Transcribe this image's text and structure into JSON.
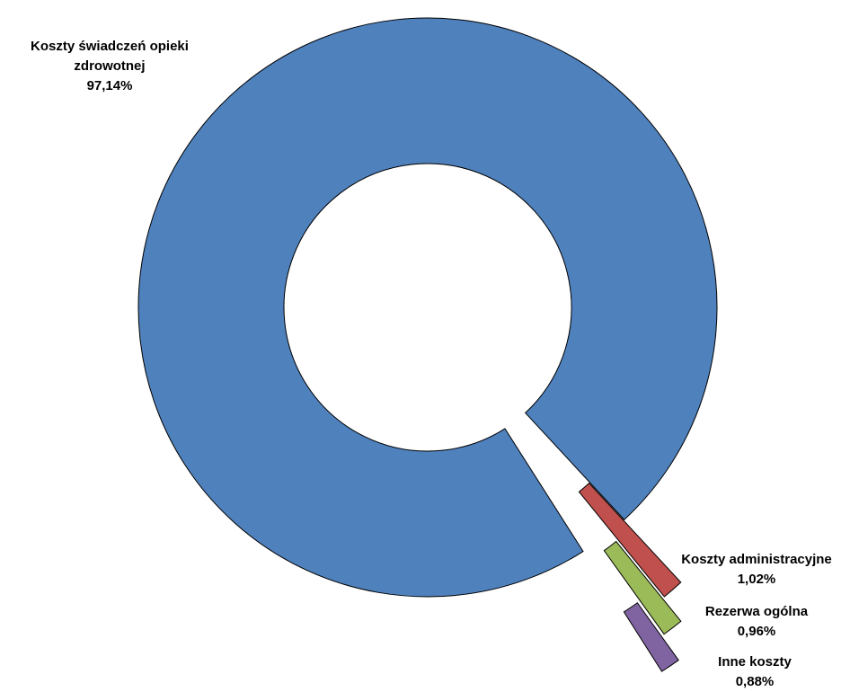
{
  "chart_data": {
    "type": "pie",
    "variant": "doughnut-exploded",
    "series": [
      {
        "name": "Koszty świadczeń opieki zdrowotnej",
        "value": 97.14,
        "value_label": "97,14%",
        "color": "#4f81bd"
      },
      {
        "name": "Koszty administracyjne",
        "value": 1.02,
        "value_label": "1,02%",
        "color": "#c0504d"
      },
      {
        "name": "Rezerwa ogólna",
        "value": 0.96,
        "value_label": "0,96%",
        "color": "#9bbb59"
      },
      {
        "name": "Inne koszty",
        "value": 0.88,
        "value_label": "0,88%",
        "color": "#8064a2"
      }
    ],
    "labels": {
      "main": [
        "Koszty świadczeń opieki",
        "zdrowotnej",
        "97,14%"
      ],
      "admin": [
        "Koszty administracyjne",
        "1,02%"
      ],
      "reserve": [
        "Rezerwa ogólna",
        "0,96%"
      ],
      "other": [
        "Inne koszty",
        "0,88%"
      ]
    },
    "legend": "none",
    "grid": false
  }
}
